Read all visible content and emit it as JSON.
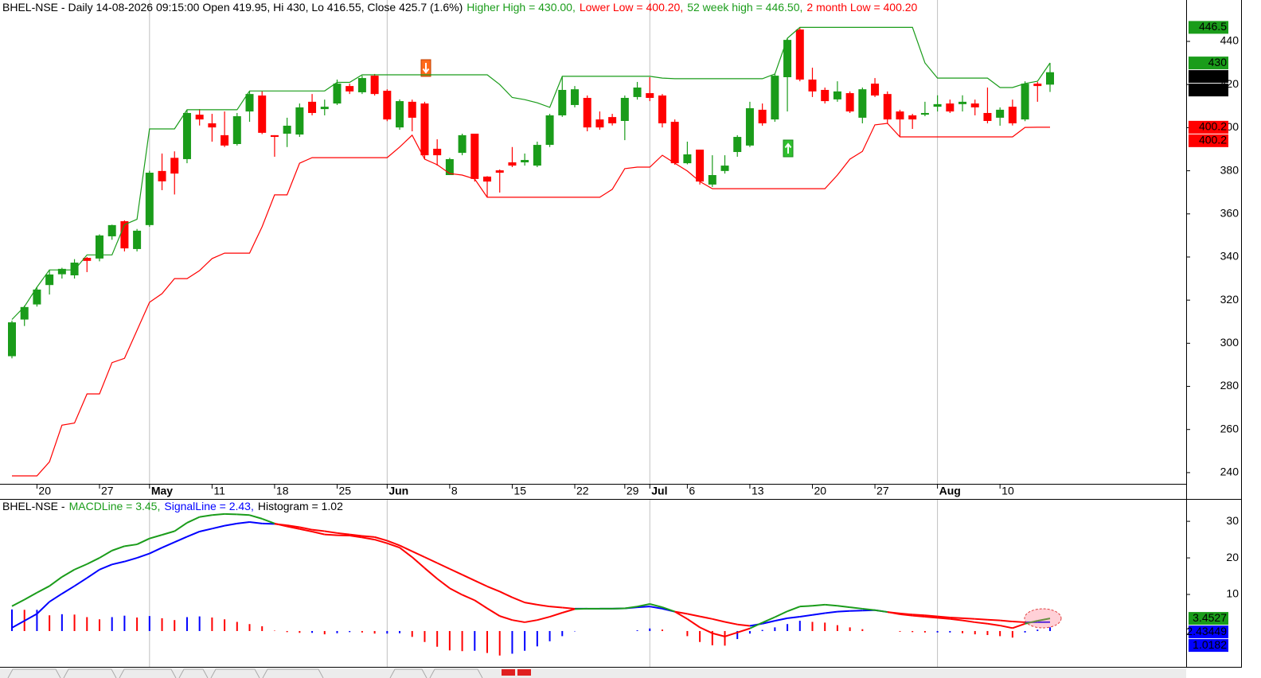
{
  "chart_data": [
    {
      "type": "candlestick",
      "title_parts": [
        {
          "text": "BHEL-NSE - Daily 14-08-2026 09:15:00 Open 419.95, Hi 430, Lo 416.55, Close 425.7 (1.6%)",
          "color": "#000000"
        },
        {
          "text": "Higher High = 430.00,",
          "color": "#1a9c1a"
        },
        {
          "text": "Lower Low = 400.20,",
          "color": "#ff0000"
        },
        {
          "text": "52 week high = 446.50,",
          "color": "#1a9c1a"
        },
        {
          "text": "2 month Low = 400.20",
          "color": "#ff0000"
        }
      ],
      "categories": [
        null,
        null,
        "20",
        null,
        null,
        null,
        null,
        "27",
        null,
        null,
        null,
        "May",
        null,
        null,
        null,
        null,
        "11",
        null,
        null,
        null,
        null,
        "18",
        null,
        null,
        null,
        null,
        "25",
        null,
        null,
        null,
        "Jun",
        null,
        null,
        null,
        null,
        "8",
        null,
        null,
        null,
        null,
        "15",
        null,
        null,
        null,
        null,
        "22",
        null,
        null,
        null,
        "29",
        null,
        "Jul",
        null,
        null,
        "6",
        null,
        null,
        null,
        null,
        "13",
        null,
        null,
        null,
        null,
        "20",
        null,
        null,
        null,
        null,
        "27",
        null,
        null,
        null,
        null,
        "Aug",
        null,
        null,
        null,
        null,
        "10",
        null,
        null,
        null,
        null
      ],
      "open": [
        294,
        311,
        318,
        327,
        332,
        331.5,
        339.6,
        339.3,
        349.6,
        356.6,
        343.7,
        354.8,
        379.9,
        386,
        385.4,
        406,
        402,
        396.5,
        392.4,
        407.5,
        414.9,
        396.5,
        397.2,
        396.8,
        412,
        408.6,
        411.2,
        419.3,
        416.4,
        424.1,
        417.1,
        400.1,
        412,
        411.2,
        390.2,
        378,
        388.3,
        397.2,
        377.3,
        380.2,
        383.9,
        383.9,
        382.4,
        392,
        405.7,
        410.5,
        413.8,
        403.8,
        404.9,
        403.1,
        414.2,
        416,
        414.9,
        402.7,
        383.5,
        389.8,
        373.6,
        379.9,
        388.7,
        391.7,
        408.3,
        403.8,
        423.4,
        445.5,
        422.3,
        417.5,
        413.1,
        416,
        404.6,
        420.4,
        415.6,
        407.5,
        405.7,
        406,
        409.7,
        411.2,
        410.9,
        411.2,
        406.8,
        404.6,
        409.7,
        403.8,
        420.4,
        419.95
      ],
      "high": [
        310.5,
        317.5,
        326,
        334,
        335,
        339,
        340,
        350.5,
        355,
        357,
        353,
        380,
        388,
        389,
        408.3,
        408.6,
        406.4,
        407.5,
        406.8,
        416.8,
        416.8,
        396.5,
        404.6,
        411.2,
        415.6,
        413,
        422.3,
        420.4,
        424.1,
        424.9,
        417.8,
        413.1,
        413,
        412,
        394.6,
        386,
        397.2,
        397.2,
        377.5,
        380.6,
        391,
        388,
        393.5,
        406.4,
        423.8,
        419.3,
        414.9,
        407.5,
        406.4,
        414.9,
        421.2,
        423.4,
        415.6,
        403.8,
        393.5,
        389.8,
        387.2,
        387.2,
        396.5,
        412,
        411.2,
        424.9,
        441.5,
        446.5,
        427.8,
        418.6,
        421.5,
        416.8,
        418.6,
        423,
        416.8,
        408.3,
        406.4,
        412,
        415,
        413,
        415,
        413,
        418.6,
        409.4,
        413,
        421.5,
        421.2,
        430
      ],
      "low": [
        293,
        308,
        317,
        322.6,
        330,
        330,
        333,
        338,
        348,
        342.6,
        342.6,
        354,
        371,
        369,
        383.5,
        401,
        393.5,
        391,
        391.7,
        402.7,
        397,
        386.5,
        391,
        395.7,
        405.7,
        405.7,
        410.5,
        415.6,
        415.6,
        414.9,
        403,
        399,
        398.3,
        385.4,
        382.4,
        378,
        387.2,
        375,
        367.7,
        369.9,
        381.7,
        382.4,
        381.7,
        391,
        405,
        409.4,
        398.3,
        399,
        401,
        394.2,
        413,
        412.3,
        400.1,
        382.8,
        383,
        373.6,
        372.5,
        378.7,
        386.5,
        391,
        400.9,
        402.7,
        407.5,
        421.5,
        414.2,
        411.2,
        412,
        406.8,
        402,
        414.2,
        402,
        395.7,
        399.4,
        405.3,
        407.5,
        406.8,
        407.5,
        405.7,
        402,
        400.9,
        401,
        403,
        412,
        416.55
      ],
      "close": [
        309.7,
        316.8,
        324.9,
        331.9,
        334.5,
        337.4,
        338.2,
        350,
        354.8,
        344,
        352.2,
        379.1,
        375.1,
        378.7,
        406.8,
        403.8,
        400.1,
        391.7,
        405.3,
        415.6,
        397.6,
        395.7,
        400.9,
        409.4,
        406.8,
        409.7,
        420.4,
        416.8,
        423,
        415.6,
        403.8,
        412.3,
        404.6,
        387.2,
        387.2,
        385.4,
        396.5,
        376.2,
        375,
        379.1,
        382.4,
        385,
        392,
        405.7,
        417.5,
        417.8,
        400.1,
        400.1,
        402,
        413.8,
        418.6,
        413.8,
        402,
        383.5,
        387.6,
        375,
        378,
        382.4,
        395.7,
        409,
        402,
        424.1,
        440.7,
        422.3,
        416.8,
        412.3,
        416.8,
        407.5,
        417.8,
        414.9,
        403.8,
        403.8,
        403.8,
        406.8,
        410.9,
        407.5,
        412,
        409.4,
        403.1,
        408.3,
        402,
        420.4,
        419.3,
        425.7
      ],
      "up_color": "#1a9c1a",
      "down_color": "#ff0000",
      "series": [
        {
          "color": "#1a9c1a",
          "values": [
            311,
            317,
            326,
            334,
            334,
            334,
            341,
            341,
            341,
            355,
            357.5,
            399.4,
            399.4,
            399.4,
            408.3,
            408.3,
            408.3,
            408.3,
            408.3,
            417,
            417,
            417,
            417,
            417,
            417,
            417,
            421,
            421,
            424.5,
            424.5,
            424.5,
            424.5,
            424.5,
            424.5,
            424.5,
            424.5,
            424.5,
            424.5,
            424.5,
            420,
            414,
            413,
            411.5,
            409.4,
            423.8,
            423.8,
            423.8,
            423.8,
            423.8,
            423.8,
            423.8,
            423.8,
            423,
            422.7,
            422.7,
            422.7,
            422.7,
            422.7,
            422.7,
            422.7,
            422.7,
            424.9,
            441.5,
            446.5,
            446.5,
            446.5,
            446.5,
            446.5,
            446.5,
            446.5,
            446.5,
            446.5,
            446.5,
            430,
            423,
            423,
            423,
            423,
            423,
            418.6,
            418.6,
            420.5,
            421.5,
            430
          ]
        },
        {
          "color": "#ff0000",
          "values": [
            238.5,
            238.5,
            238.5,
            245,
            262,
            263,
            276.5,
            276.5,
            291,
            293,
            306,
            319,
            323,
            330,
            330,
            333.7,
            339.3,
            341.8,
            341.8,
            341.8,
            354,
            368.8,
            368.8,
            383.5,
            386.1,
            386.1,
            386.1,
            386.1,
            386.1,
            386.1,
            386.1,
            391,
            396.5,
            385.4,
            382.8,
            378.7,
            378,
            376.2,
            367.7,
            367.7,
            367.7,
            367.7,
            367.7,
            367.7,
            367.7,
            367.7,
            367.7,
            367.7,
            371.4,
            381,
            381.7,
            381.7,
            387.2,
            383.5,
            379.9,
            375,
            371.7,
            371.7,
            371.7,
            371.7,
            371.7,
            371.7,
            371.7,
            371.7,
            371.7,
            371.7,
            378,
            385.4,
            389,
            401.3,
            402,
            395.7,
            395.7,
            395.7,
            395.7,
            395.7,
            395.7,
            395.7,
            395.7,
            395.7,
            395.7,
            400.1,
            400.2,
            400.2
          ]
        }
      ],
      "price_boxes": [
        {
          "value": 446.5,
          "color": "#1a9c1a"
        },
        {
          "value": 430,
          "color": "#1a9c1a"
        },
        {
          "value": 425.7,
          "color": "#000000"
        },
        {
          "value": 425.7,
          "color": "#000000"
        },
        {
          "value": 400.2,
          "color": "#ff0000"
        },
        {
          "value": 400.2,
          "color": "#ff0000"
        }
      ],
      "ylim": [
        234.8,
        459.2
      ],
      "yticks": [
        240,
        260,
        280,
        300,
        320,
        340,
        360,
        380,
        400,
        420,
        440
      ],
      "grid": true
    },
    {
      "type": "macd",
      "title_parts": [
        {
          "text": "BHEL-NSE -",
          "color": "#000000"
        },
        {
          "text": "MACDLine = 3.45,",
          "color": "#1a9c1a"
        },
        {
          "text": "SignalLine = 2.43,",
          "color": "#0000ff"
        },
        {
          "text": "Histogram = 1.02",
          "color": "#000000"
        }
      ],
      "series": [
        {
          "color": "#1a9c1a",
          "below_color": "#ff0000",
          "values": [
            6.8,
            8.6,
            10.5,
            12.3,
            14.8,
            16.8,
            18.3,
            20,
            22,
            23.2,
            23.7,
            25.3,
            26.3,
            27.3,
            29.6,
            31.2,
            31.7,
            32,
            31.9,
            31.7,
            30.7,
            29.4,
            28.6,
            27.9,
            27.2,
            26.4,
            26.2,
            26.1,
            25.6,
            25,
            24,
            22.8,
            20.2,
            17.2,
            14.3,
            11.7,
            9.9,
            8.4,
            6.2,
            4.1,
            3,
            2.4,
            3,
            3.9,
            5,
            6,
            6.1,
            6.1,
            6.1,
            6.2,
            6.7,
            7.4,
            6.5,
            5.3,
            3.3,
            1,
            -0.6,
            -1.5,
            -0.4,
            0.7,
            2.3,
            3.8,
            5.4,
            6.7,
            6.9,
            7.2,
            6.9,
            6.5,
            6.1,
            5.7,
            5.2,
            4.6,
            4.2,
            3.9,
            3.6,
            3.3,
            2.9,
            2.4,
            2,
            1.5,
            0.8,
            2,
            2.8,
            3.45
          ]
        },
        {
          "color": "#0000ff",
          "below_color": "#ff0000",
          "values": [
            0.9,
            2.8,
            4.7,
            8,
            10.2,
            12.3,
            14.5,
            16.8,
            18.2,
            19,
            20,
            21.2,
            22.8,
            24.3,
            25.8,
            27.2,
            28,
            28.8,
            29.4,
            29.8,
            29.4,
            29.3,
            28.9,
            28.4,
            27.7,
            27.3,
            26.8,
            26.4,
            26,
            25.7,
            24.7,
            23.4,
            21.8,
            20.2,
            18.6,
            17,
            15.4,
            13.8,
            12.2,
            10.8,
            9.2,
            7.8,
            7.2,
            6.7,
            6.4,
            6.1,
            6.1,
            6.1,
            6.1,
            6.2,
            6.5,
            6.7,
            6.1,
            5.3,
            4.7,
            4,
            3.3,
            2.5,
            1.8,
            1.4,
            2,
            2.8,
            3.5,
            3.9,
            4.4,
            4.9,
            5.3,
            5.5,
            5.6,
            5.7,
            5.2,
            4.8,
            4.5,
            4.3,
            4,
            3.7,
            3.5,
            3.3,
            3.1,
            2.9,
            2.6,
            2.4,
            2.42,
            2.43
          ]
        }
      ],
      "histogram": {
        "rising_color": "#0000ff",
        "falling_color": "#ff0000",
        "values": [
          5.9,
          5.8,
          5.8,
          4.3,
          4.6,
          4.5,
          3.8,
          3.2,
          3.8,
          4.2,
          3.7,
          4.1,
          3.5,
          3,
          3.8,
          4,
          3.7,
          3.2,
          2.5,
          1.9,
          1.3,
          0.1,
          -0.3,
          -0.5,
          -0.5,
          -0.9,
          -0.6,
          -0.3,
          -0.4,
          -0.7,
          -0.7,
          -0.6,
          -1.6,
          -3,
          -4.3,
          -5.3,
          -5.5,
          -5.4,
          -6,
          -6.7,
          -6.2,
          -5.4,
          -4.2,
          -2.8,
          -1.4,
          -0.1,
          0,
          0,
          0,
          0,
          0.2,
          0.7,
          0.4,
          0,
          -1.4,
          -3,
          -3.9,
          -4,
          -2.2,
          -0.7,
          0.3,
          1,
          1.9,
          2.8,
          2.5,
          2.3,
          1.6,
          1,
          0.5,
          0,
          0,
          -0.2,
          -0.3,
          -0.4,
          -0.4,
          -0.4,
          -0.6,
          -0.9,
          -1.1,
          -1.4,
          -1.8,
          -0.4,
          0.38,
          1.02
        ]
      },
      "price_boxes": [
        {
          "value": 3.4527,
          "color": "#1a9c1a"
        },
        {
          "value": 2.43449,
          "color": "#0000ff"
        },
        {
          "value": 1.0182,
          "color": "#0000ff"
        }
      ],
      "ylim": [
        -9.8,
        35.9
      ],
      "yticks": [
        10,
        20,
        30
      ]
    }
  ]
}
